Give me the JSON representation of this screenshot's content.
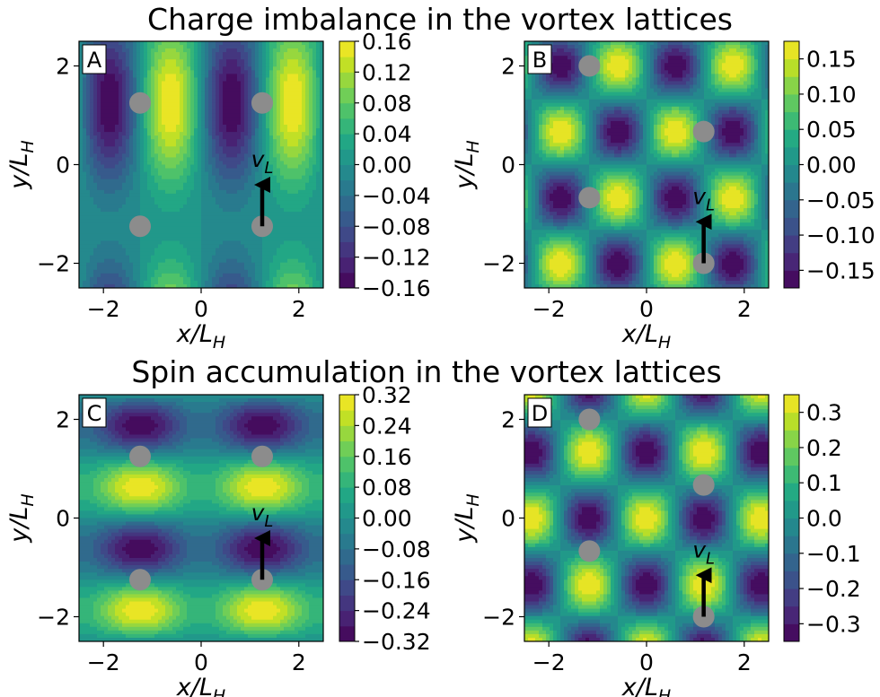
{
  "figure": {
    "top_title": "Charge imbalance in the vortex lattices",
    "bottom_title": "Spin accumulation in the vortex lattices"
  },
  "chart_data": [
    {
      "type": "heatmap",
      "panel": "A",
      "title": "Charge imbalance in the vortex lattices",
      "xlabel": "x/L_H",
      "ylabel": "y/L_H",
      "xlim": [
        -2.5,
        2.5
      ],
      "ylim": [
        -2.5,
        2.5
      ],
      "xticks": [
        -2,
        0,
        2
      ],
      "yticks": [
        -2,
        0,
        2
      ],
      "colormap": "viridis",
      "color_range": [
        -0.16,
        0.16
      ],
      "colorbar_ticks": [
        "0.16",
        "0.12",
        "0.08",
        "0.04",
        "0.00",
        "−0.04",
        "−0.08",
        "−0.12",
        "−0.16"
      ],
      "field": {
        "kind": "charge_square",
        "a": 2.5,
        "b": 5.0,
        "amp": 0.16
      },
      "vortices": [
        [
          -1.25,
          1.25
        ],
        [
          1.25,
          1.25
        ],
        [
          -1.25,
          -1.25
        ],
        [
          1.25,
          -1.25
        ]
      ],
      "velocity_arrow": {
        "from": [
          1.25,
          -1.25
        ],
        "to": [
          1.25,
          -0.3
        ],
        "label": "v_L"
      }
    },
    {
      "type": "heatmap",
      "panel": "B",
      "xlabel": "x/L_H",
      "ylabel": "y/L_H",
      "xlim": [
        -2.5,
        2.5
      ],
      "ylim": [
        -2.5,
        2.5
      ],
      "xticks": [
        -2,
        0,
        2
      ],
      "yticks": [
        -2,
        0,
        2
      ],
      "colormap": "viridis",
      "color_range": [
        -0.175,
        0.175
      ],
      "colorbar_ticks": [
        "0.15",
        "0.10",
        "0.05",
        "0.00",
        "−0.05",
        "−0.10",
        "−0.15"
      ],
      "field": {
        "kind": "charge_tri",
        "a": 2.35,
        "b": 2.68,
        "amp": 0.175
      },
      "vortices": [
        [
          -1.17,
          2.0
        ],
        [
          1.17,
          0.67
        ],
        [
          -1.17,
          -0.67
        ],
        [
          1.17,
          -2.0
        ]
      ],
      "velocity_arrow": {
        "from": [
          1.17,
          -2.0
        ],
        "to": [
          1.17,
          -1.05
        ],
        "label": "v_L"
      }
    },
    {
      "type": "heatmap",
      "panel": "C",
      "title": "Spin accumulation in the vortex lattices",
      "xlabel": "x/L_H",
      "ylabel": "y/L_H",
      "xlim": [
        -2.5,
        2.5
      ],
      "ylim": [
        -2.5,
        2.5
      ],
      "xticks": [
        -2,
        0,
        2
      ],
      "yticks": [
        -2,
        0,
        2
      ],
      "colormap": "viridis",
      "color_range": [
        -0.32,
        0.32
      ],
      "colorbar_ticks": [
        "0.32",
        "0.24",
        "0.16",
        "0.08",
        "0.00",
        "−0.08",
        "−0.16",
        "−0.24",
        "−0.32"
      ],
      "field": {
        "kind": "spin_square",
        "a": 2.5,
        "b": 2.5,
        "amp": 0.32
      },
      "vortices": [
        [
          -1.25,
          1.25
        ],
        [
          1.25,
          1.25
        ],
        [
          -1.25,
          -1.25
        ],
        [
          1.25,
          -1.25
        ]
      ],
      "velocity_arrow": {
        "from": [
          1.25,
          -1.25
        ],
        "to": [
          1.25,
          -0.3
        ],
        "label": "v_L"
      }
    },
    {
      "type": "heatmap",
      "panel": "D",
      "xlabel": "x/L_H",
      "ylabel": "y/L_H",
      "xlim": [
        -2.5,
        2.5
      ],
      "ylim": [
        -2.5,
        2.5
      ],
      "xticks": [
        -2,
        0,
        2
      ],
      "yticks": [
        -2,
        0,
        2
      ],
      "colormap": "viridis",
      "color_range": [
        -0.35,
        0.35
      ],
      "colorbar_ticks": [
        "0.3",
        "0.2",
        "0.1",
        "0.0",
        "−0.1",
        "−0.2",
        "−0.3"
      ],
      "field": {
        "kind": "spin_tri",
        "a": 2.35,
        "b": 2.68,
        "amp": 0.35
      },
      "vortices": [
        [
          -1.17,
          2.0
        ],
        [
          1.17,
          0.67
        ],
        [
          -1.17,
          -0.67
        ],
        [
          1.17,
          -2.0
        ]
      ],
      "velocity_arrow": {
        "from": [
          1.17,
          -2.0
        ],
        "to": [
          1.17,
          -1.05
        ],
        "label": "v_L"
      }
    }
  ]
}
